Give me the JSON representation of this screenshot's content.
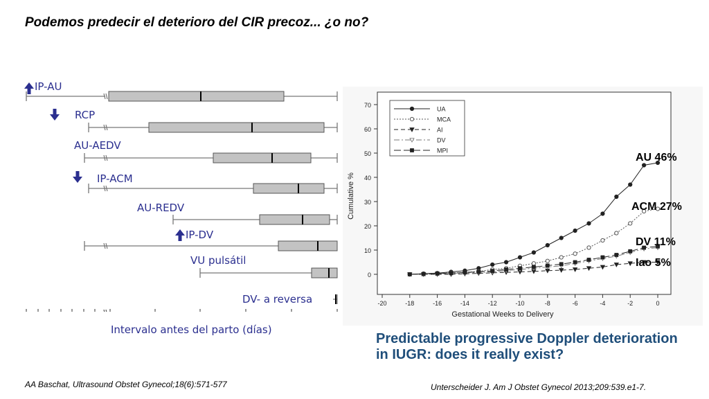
{
  "title": "Podemos predecir el deterioro del CIR precoz... ¿o no?",
  "left_chart": {
    "axis_label": "Intervalo antes del parto (días)",
    "ticks_left": [
      "84",
      "77",
      "70",
      "63",
      "56",
      "49",
      "42"
    ],
    "ticks_right": [
      "35",
      "28",
      "21",
      "14",
      "7",
      "0"
    ],
    "rows": [
      {
        "label": "IP-AU",
        "arrow": "up"
      },
      {
        "label": "RCP",
        "arrow": "down"
      },
      {
        "label": "AU-AEDV",
        "arrow": ""
      },
      {
        "label": "IP-ACM",
        "arrow": "down"
      },
      {
        "label": "AU-REDV",
        "arrow": ""
      },
      {
        "label": "IP-DV",
        "arrow": "up"
      },
      {
        "label": "VU pulsátil",
        "arrow": ""
      },
      {
        "label": "DV- a reversa",
        "arrow": ""
      }
    ]
  },
  "chart_data": {
    "type": "line",
    "xlabel": "Gestational Weeks to Delivery",
    "ylabel": "Cumulative %",
    "xlim": [
      -20,
      0
    ],
    "ylim": [
      0,
      70
    ],
    "xticks": [
      "-20",
      "-18",
      "-16",
      "-14",
      "-12",
      "-10",
      "-8",
      "-6",
      "-4",
      "-2",
      "0"
    ],
    "yticks": [
      "0",
      "10",
      "20",
      "30",
      "40",
      "50",
      "60",
      "70"
    ],
    "legend_position": "top-left",
    "x": [
      -18,
      -17,
      -16,
      -15,
      -14,
      -13,
      -12,
      -11,
      -10,
      -9,
      -8,
      -7,
      -6,
      -5,
      -4,
      -3,
      -2,
      -1,
      0
    ],
    "series": [
      {
        "name": "UA",
        "values": [
          0,
          0.3,
          0.5,
          1,
          1.5,
          2.5,
          4,
          5,
          7,
          9,
          12,
          15,
          18,
          21,
          25,
          32,
          37,
          45,
          46
        ]
      },
      {
        "name": "MCA",
        "values": [
          0,
          0.2,
          0.4,
          0.6,
          0.8,
          1.2,
          2,
          2.5,
          3.5,
          4.5,
          5.5,
          7,
          8.5,
          11,
          14,
          17,
          21,
          26,
          27
        ]
      },
      {
        "name": "AI",
        "values": [
          0,
          0,
          0,
          0,
          0.2,
          0.4,
          0.6,
          0.8,
          1,
          1.2,
          1.5,
          1.7,
          2,
          2.5,
          3,
          4,
          4.5,
          5,
          5
        ]
      },
      {
        "name": "DV",
        "values": [
          0,
          0,
          0.2,
          0.4,
          0.6,
          0.8,
          1,
          1.5,
          2,
          2.5,
          3,
          3.5,
          4.5,
          5.5,
          6.5,
          7.5,
          9,
          10.5,
          11
        ]
      },
      {
        "name": "MPI",
        "values": [
          0,
          0.1,
          0.3,
          0.5,
          0.8,
          1,
          1.4,
          2,
          2.5,
          3,
          3.6,
          4.2,
          5,
          6,
          7,
          8,
          9.5,
          11,
          11.5
        ]
      }
    ],
    "end_labels": [
      "AU 46%",
      "ACM 27%",
      "DV 11%",
      "Iao 5%"
    ],
    "caption": "Predictable progressive Doppler deterioration in IUGR: does it really exist?"
  },
  "citations": {
    "left": "AA Baschat, Ultrasound  Obstet Gynecol;18(6):571-577",
    "right": "Unterscheider J. Am J Obstet Gynecol 2013;209:539.e1-7."
  }
}
